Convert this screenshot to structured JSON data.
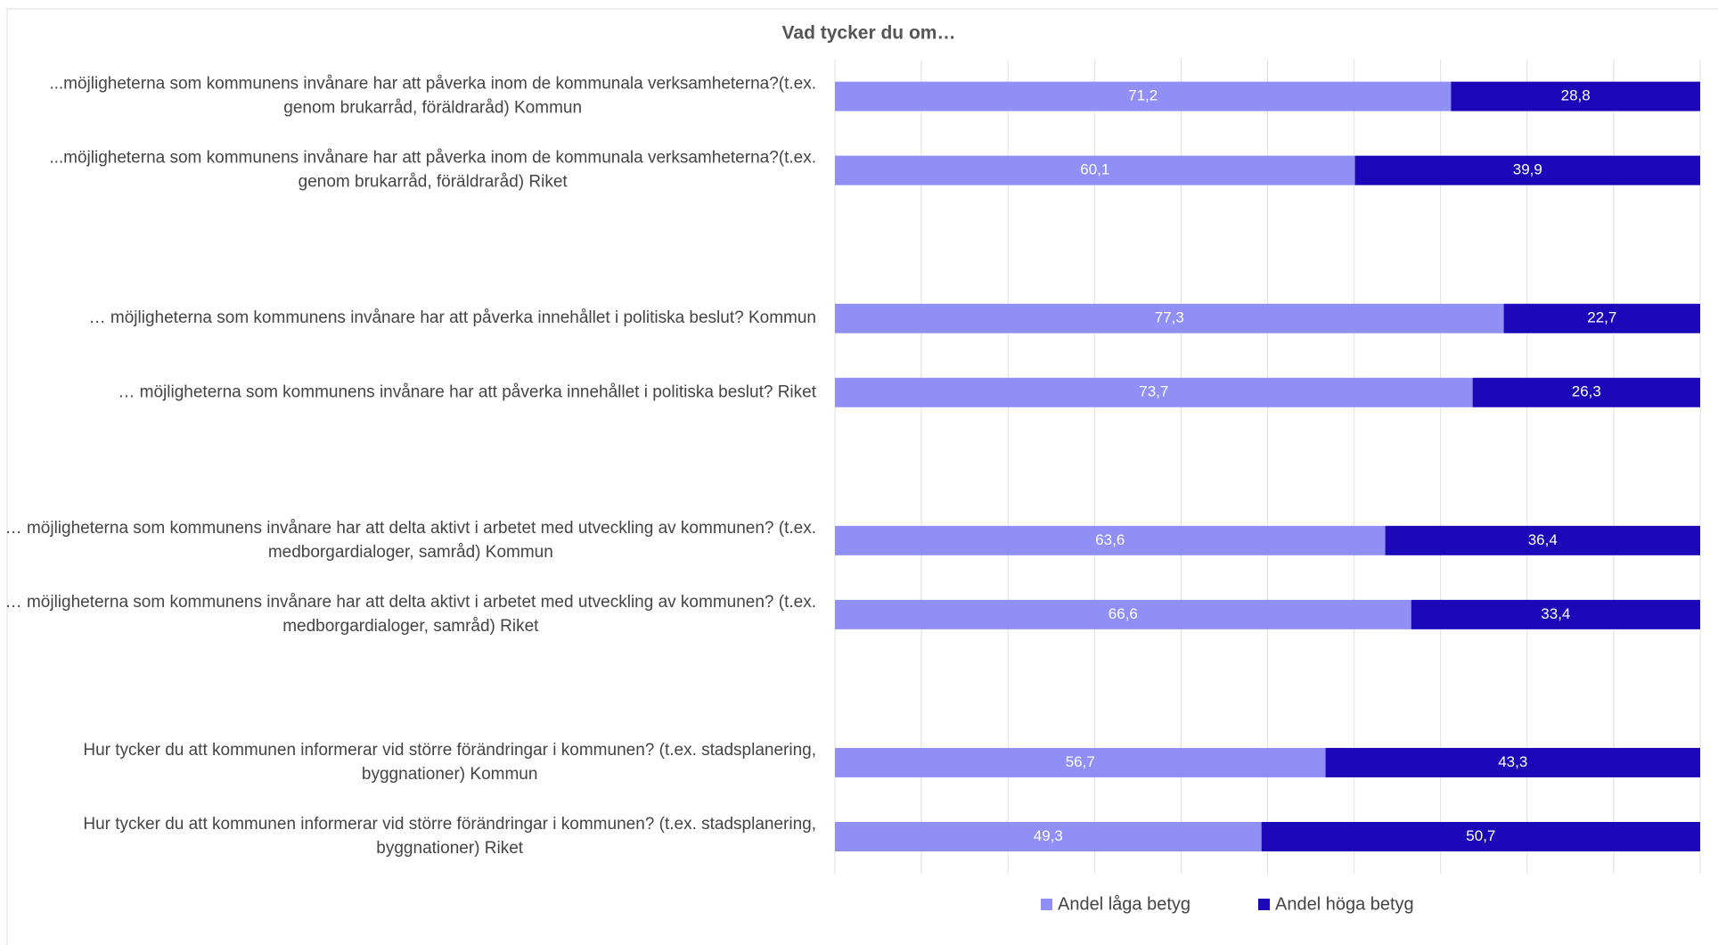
{
  "chart_data": {
    "type": "stacked_bar_horizontal",
    "title": "Vad tycker du om…",
    "categories": [
      "...möjligheterna som kommunens invånare har att påverka inom de kommunala verksamheterna?(t.ex. genom brukarråd, föräldraråd) Kommun",
      "...möjligheterna som kommunens invånare har att påverka inom de kommunala verksamheterna?(t.ex. genom brukarråd, föräldraråd) Riket",
      null,
      "… möjligheterna som kommunens invånare har att påverka innehållet i politiska beslut? Kommun",
      "… möjligheterna som kommunens invånare har att påverka innehållet i politiska beslut? Riket",
      null,
      "… möjligheterna som kommunens invånare har att delta aktivt i arbetet med utveckling av kommunen? (t.ex. medborgardialoger, samråd) Kommun",
      "… möjligheterna som kommunens invånare har att delta aktivt i arbetet med utveckling av kommunen? (t.ex. medborgardialoger, samråd) Riket",
      null,
      "Hur tycker du att kommunen informerar vid större förändringar i kommunen? (t.ex. stadsplanering, byggnationer) Kommun",
      "Hur tycker du att kommunen informerar vid större förändringar i kommunen? (t.ex. stadsplanering, byggnationer) Riket"
    ],
    "series": [
      {
        "name": "Andel låga betyg",
        "color": "#8f8ff5",
        "values": [
          71.2,
          60.1,
          null,
          77.3,
          73.7,
          null,
          63.6,
          66.6,
          null,
          56.7,
          49.3
        ],
        "value_labels": [
          "71,2",
          "60,1",
          null,
          "77,3",
          "73,7",
          null,
          "63,6",
          "66,6",
          null,
          "56,7",
          "49,3"
        ]
      },
      {
        "name": "Andel höga betyg",
        "color": "#1c08b8",
        "values": [
          28.8,
          39.9,
          null,
          22.7,
          26.3,
          null,
          36.4,
          33.4,
          null,
          43.3,
          50.7
        ],
        "value_labels": [
          "28,8",
          "39,9",
          null,
          "22,7",
          "26,3",
          null,
          "36,4",
          "33,4",
          null,
          "43,3",
          "50,7"
        ]
      }
    ],
    "xlim": [
      0,
      100
    ],
    "xticks": [
      0,
      10,
      20,
      30,
      40,
      50,
      60,
      70,
      80,
      90,
      100
    ],
    "grid": true,
    "legend": "bottom"
  }
}
